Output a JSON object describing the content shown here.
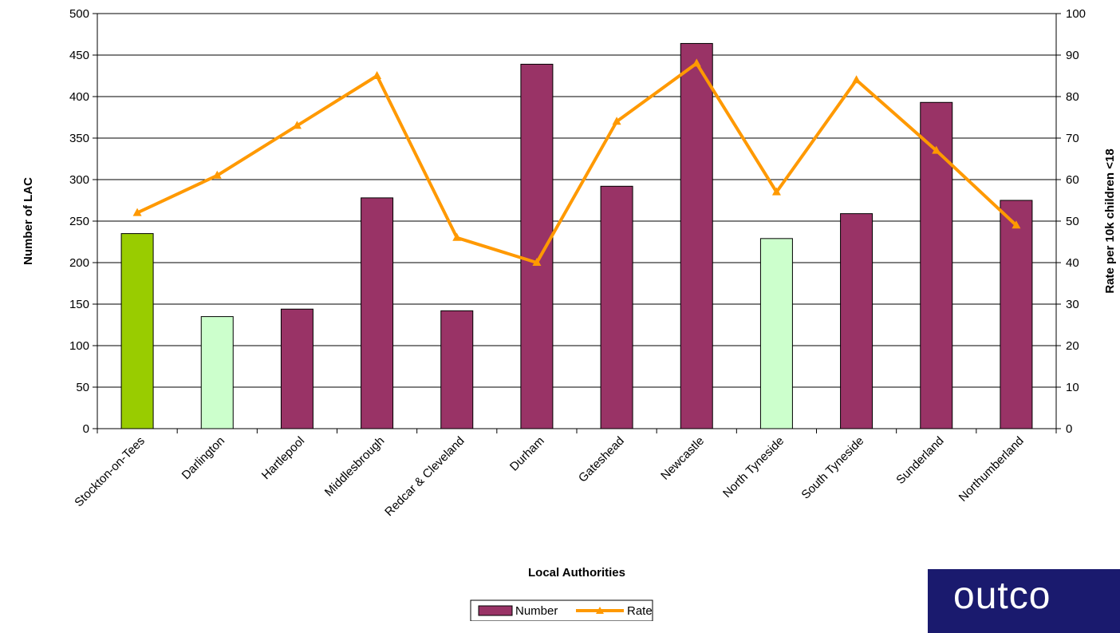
{
  "chart_data": {
    "type": "bar",
    "categories": [
      "Stockton-on-Tees",
      "Darlington",
      "Hartlepool",
      "Middlesbrough",
      "Redcar & Cleveland",
      "Durham",
      "Gateshead",
      "Newcastle",
      "North Tyneside",
      "South Tyneside",
      "Sunderland",
      "Northumberland"
    ],
    "series": [
      {
        "name": "Number",
        "kind": "bar",
        "axis": "left",
        "values": [
          235,
          135,
          144,
          278,
          142,
          439,
          292,
          464,
          229,
          259,
          393,
          275
        ],
        "bar_colors": [
          "#99cc00",
          "#ccffcc",
          "#993366",
          "#993366",
          "#993366",
          "#993366",
          "#993366",
          "#993366",
          "#ccffcc",
          "#993366",
          "#993366",
          "#993366"
        ]
      },
      {
        "name": "Rate",
        "kind": "line",
        "axis": "right",
        "values": [
          52,
          61,
          73,
          85,
          46,
          40,
          74,
          88,
          57,
          84,
          67,
          49
        ],
        "color": "#ff9900"
      }
    ],
    "xlabel": "Local Authorities",
    "ylabel": "Number of LAC",
    "y2label": "Rate per 10k children <18",
    "ylim": [
      0,
      500
    ],
    "y2lim": [
      0,
      100
    ],
    "yticks": [
      0,
      50,
      100,
      150,
      200,
      250,
      300,
      350,
      400,
      450,
      500
    ],
    "y2ticks": [
      0,
      10,
      20,
      30,
      40,
      50,
      60,
      70,
      80,
      90,
      100
    ],
    "grid": true,
    "legend": "bottom"
  },
  "logo": {
    "text": "outco"
  }
}
